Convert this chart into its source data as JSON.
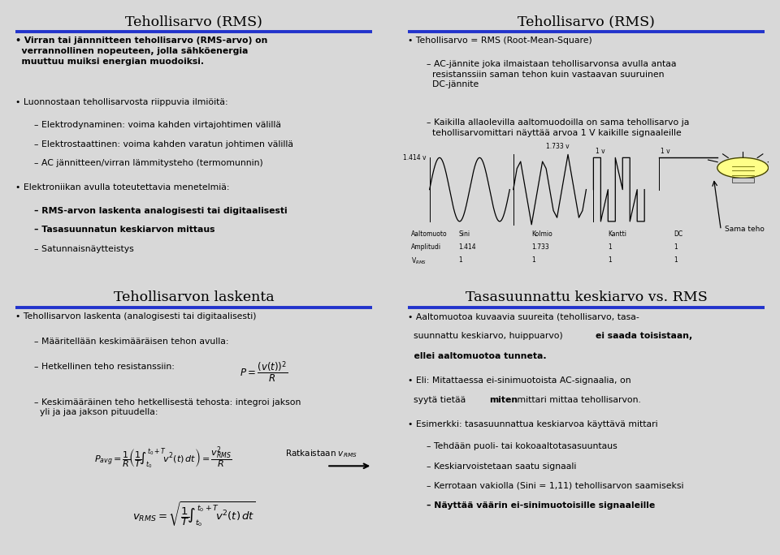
{
  "bg_color": "#d8d8d8",
  "panel_bg": "#ffffff",
  "blue_line_color": "#2233cc",
  "panels": [
    {
      "title": "Tehollisarvo (RMS)",
      "col": 0,
      "row": 0
    },
    {
      "title": "Tehollisarvo (RMS)",
      "col": 1,
      "row": 0
    },
    {
      "title": "Tehollisarvon laskenta",
      "col": 0,
      "row": 1
    },
    {
      "title": "Tasasuunnattu keskiarvo vs. RMS",
      "col": 1,
      "row": 1
    }
  ],
  "panel_positions": {
    "00": [
      0.005,
      0.505,
      0.487,
      0.49
    ],
    "10": [
      0.508,
      0.505,
      0.487,
      0.49
    ],
    "01": [
      0.005,
      0.008,
      0.487,
      0.49
    ],
    "11": [
      0.508,
      0.008,
      0.487,
      0.49
    ]
  }
}
